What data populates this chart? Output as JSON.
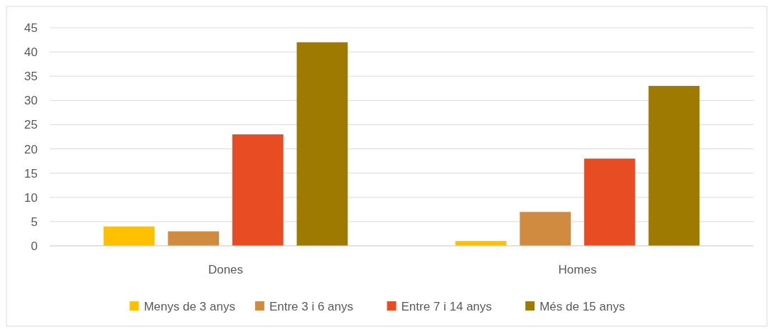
{
  "chart_data": {
    "type": "bar",
    "categories": [
      "Dones",
      "Homes"
    ],
    "series": [
      {
        "name": "Menys de 3 anys",
        "color": "#ffc000",
        "values": [
          4,
          1
        ]
      },
      {
        "name": "Entre 3 i 6 anys",
        "color": "#d08b40",
        "values": [
          3,
          7
        ]
      },
      {
        "name": "Entre 7 i 14 anys",
        "color": "#e84c22",
        "values": [
          23,
          18
        ]
      },
      {
        "name": "Més de 15 anys",
        "color": "#9e7b00",
        "values": [
          42,
          33
        ]
      }
    ],
    "ylim": [
      0,
      45
    ],
    "yticks": [
      0,
      5,
      10,
      15,
      20,
      25,
      30,
      35,
      40,
      45
    ],
    "grid": "y",
    "legend": "bottom"
  }
}
